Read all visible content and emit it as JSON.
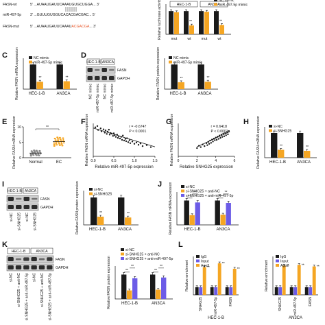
{
  "panel_labels": [
    "C",
    "D",
    "E",
    "F",
    "G",
    "H",
    "I",
    "J",
    "K",
    "L"
  ],
  "colors": {
    "black": "#1a1a1a",
    "orange": "#f5a623",
    "purple": "#6c5ce7",
    "red": "#e8572a",
    "gray": "#8a8a8a"
  },
  "A": {
    "fasn_wt": "FASN-wt",
    "fasn_wt_seq": "5' ...AUAAUGAUUCAAAUGUGCUGGA... 3'",
    "mir": "miR-497-5p",
    "mir_seq": "3' ...GUUUGUGGUCACACGACGAC... 5'",
    "fasn_mut": "FASN-mut",
    "fasn_mut_seq_a": "5' ...AUAAUGAUUCAAAU",
    "fasn_mut_seq_b": "ACGACGA",
    "fasn_mut_seq_c": "... 3'"
  },
  "chart_data": [
    {
      "id": "A_bar",
      "type": "bar",
      "ylabel": "Relative luciferase activity",
      "groups": [
        "HEC-1-B",
        "AN3CA"
      ],
      "categories": [
        "mut",
        "wt",
        "mut",
        "wt"
      ],
      "series": [
        {
          "name": "NC mimic",
          "values": [
            1.0,
            1.0,
            1.0,
            1.0
          ]
        },
        {
          "name": "miR-497-5p mimic",
          "values": [
            0.95,
            0.38,
            0.97,
            0.4
          ]
        }
      ],
      "stars": [
        "",
        "**",
        "",
        "**"
      ]
    },
    {
      "id": "C",
      "type": "bar",
      "ylabel": "Relative FASN mRNA expression",
      "categories": [
        "HEC-1-B",
        "AN3CA"
      ],
      "series": [
        {
          "name": "NC mimic",
          "values": [
            1.0,
            1.0
          ]
        },
        {
          "name": "miR-497-5p mimic",
          "values": [
            0.3,
            0.32
          ]
        }
      ],
      "stars": [
        "**",
        "**"
      ]
    },
    {
      "id": "D",
      "type": "bar",
      "ylabel": "Relative FASN protein expression",
      "blot_header": [
        "HEC-1-B",
        "AN3CA"
      ],
      "blot_rows": [
        "FASN",
        "GAPDH"
      ],
      "blot_lanes": [
        "NC mimic",
        "miR-497-5p mimic",
        "NC mimic",
        "miR-497-5p mimic"
      ],
      "categories": [
        "HEC-1-B",
        "AN3CA"
      ],
      "series": [
        {
          "name": "NC mimic",
          "values": [
            1.0,
            1.0
          ]
        },
        {
          "name": "miR-497-5p mimic",
          "values": [
            0.28,
            0.3
          ]
        }
      ],
      "stars": [
        "**",
        "**"
      ]
    },
    {
      "id": "E",
      "type": "scatter",
      "ylabel": "Relative FASN mRNA expression",
      "categories": [
        "Normal",
        "EC"
      ],
      "yticks": [
        "0",
        "5",
        "10"
      ],
      "ylim": [
        0,
        10
      ],
      "means": [
        1.5,
        5.2
      ],
      "star": "**"
    },
    {
      "id": "F",
      "type": "scatter",
      "xlabel": "Relative miR-497-5p expression",
      "ylabel": "Relative FASN mRNA expression",
      "r_text": "r = -0.6747",
      "p_text": "P < 0.0001",
      "xticks": [
        "0.0",
        "0.5",
        "1.0",
        "1.5"
      ],
      "xlim": [
        0,
        1.5
      ],
      "points": [
        [
          0.05,
          8.8
        ],
        [
          0.1,
          9.2
        ],
        [
          0.12,
          8.0
        ],
        [
          0.18,
          8.5
        ],
        [
          0.2,
          7.6
        ],
        [
          0.25,
          8.2
        ],
        [
          0.28,
          7.2
        ],
        [
          0.3,
          7.9
        ],
        [
          0.33,
          6.8
        ],
        [
          0.35,
          7.5
        ],
        [
          0.38,
          8.1
        ],
        [
          0.4,
          6.6
        ],
        [
          0.42,
          7.1
        ],
        [
          0.45,
          6.9
        ],
        [
          0.48,
          6.2
        ],
        [
          0.5,
          7.0
        ],
        [
          0.52,
          6.4
        ],
        [
          0.55,
          5.9
        ],
        [
          0.58,
          6.6
        ],
        [
          0.6,
          5.6
        ],
        [
          0.62,
          6.1
        ],
        [
          0.65,
          5.4
        ],
        [
          0.68,
          5.9
        ],
        [
          0.7,
          5.0
        ],
        [
          0.72,
          6.3
        ],
        [
          0.75,
          4.8
        ],
        [
          0.78,
          5.3
        ],
        [
          0.8,
          4.6
        ],
        [
          0.82,
          5.5
        ],
        [
          0.85,
          4.3
        ],
        [
          0.88,
          4.9
        ],
        [
          0.9,
          4.0
        ],
        [
          0.95,
          4.5
        ],
        [
          1.0,
          3.8
        ],
        [
          1.05,
          4.2
        ],
        [
          1.1,
          3.5
        ],
        [
          1.15,
          3.9
        ],
        [
          1.2,
          3.1
        ],
        [
          1.3,
          3.4
        ],
        [
          1.4,
          2.8
        ]
      ],
      "fit": [
        [
          0.0,
          8.6
        ],
        [
          1.5,
          2.9
        ]
      ]
    },
    {
      "id": "G",
      "type": "scatter",
      "xlabel": "Relative SNHG25 expression",
      "ylabel": "Relative FASN mRNA expression",
      "r_text": "r = 0.6418",
      "p_text": "P < 0.0001",
      "xticks": [
        "0",
        "2",
        "4",
        "6"
      ],
      "xlim": [
        0,
        6
      ],
      "points": [
        [
          2.0,
          2.5
        ],
        [
          2.2,
          3.2
        ],
        [
          2.4,
          2.8
        ],
        [
          2.6,
          3.6
        ],
        [
          2.8,
          3.1
        ],
        [
          3.0,
          4.0
        ],
        [
          3.1,
          3.4
        ],
        [
          3.2,
          4.4
        ],
        [
          3.3,
          3.8
        ],
        [
          3.4,
          4.8
        ],
        [
          3.5,
          4.1
        ],
        [
          3.6,
          5.1
        ],
        [
          3.7,
          4.5
        ],
        [
          3.8,
          5.4
        ],
        [
          3.9,
          4.9
        ],
        [
          4.0,
          5.7
        ],
        [
          4.1,
          5.0
        ],
        [
          4.2,
          6.0
        ],
        [
          4.3,
          5.3
        ],
        [
          4.4,
          6.3
        ],
        [
          4.5,
          5.6
        ],
        [
          4.6,
          6.6
        ],
        [
          4.7,
          5.9
        ],
        [
          4.8,
          6.9
        ],
        [
          4.9,
          6.1
        ],
        [
          5.0,
          7.1
        ],
        [
          5.1,
          6.4
        ],
        [
          5.2,
          7.4
        ],
        [
          5.3,
          6.7
        ],
        [
          5.4,
          7.7
        ]
      ],
      "fit": [
        [
          2.0,
          2.9
        ],
        [
          5.5,
          7.5
        ]
      ]
    },
    {
      "id": "H",
      "type": "bar",
      "ylabel": "Relative FASN mRNA expression",
      "categories": [
        "HEC-1-B",
        "AN3CA"
      ],
      "series": [
        {
          "name": "si-NC",
          "values": [
            1.0,
            1.0
          ]
        },
        {
          "name": "si-SNHG25",
          "values": [
            0.32,
            0.28
          ]
        }
      ],
      "stars": [
        "**",
        "**"
      ]
    },
    {
      "id": "I",
      "type": "bar",
      "ylabel": "Relative FASN protein expression",
      "blot_header": [
        "HEC-1-B",
        "AN3CA"
      ],
      "blot_rows": [
        "FASN",
        "GAPDH"
      ],
      "blot_lanes": [
        "si-NC",
        "si-SNHG25",
        "si-NC",
        "si-SNHG25"
      ],
      "categories": [
        "HEC-1-B",
        "AN3CA"
      ],
      "series": [
        {
          "name": "si-NC",
          "values": [
            1.0,
            1.0
          ]
        },
        {
          "name": "si-SNHG25",
          "values": [
            0.3,
            0.27
          ]
        }
      ],
      "stars": [
        "**",
        "**"
      ]
    },
    {
      "id": "J",
      "type": "bar",
      "ylabel": "Relative FASN mRNA expression",
      "categories": [
        "HEC-1-B",
        "AN3CA"
      ],
      "series": [
        {
          "name": "si-NC",
          "values": [
            1.0,
            1.0
          ]
        },
        {
          "name": "si-SNHG25 + anti-NC",
          "values": [
            0.4,
            0.42
          ]
        },
        {
          "name": "si-SNHG25 + anti-miR-497-5p",
          "values": [
            0.92,
            0.9
          ]
        }
      ],
      "stars": [
        "**",
        "**"
      ]
    },
    {
      "id": "K",
      "type": "bar",
      "ylabel": "Relative FASN protein expression",
      "blot_header": [
        "HEC-1-B",
        "AN3CA"
      ],
      "blot_rows": [
        "FASN",
        "GAPDH"
      ],
      "blot_lanes": [
        "si-NC",
        "si-SNHG25 + anti-NC",
        "si-SNHG25 + anti-miR-497-5p",
        "si-NC",
        "si-SNHG25 + anti-NC",
        "si-SNHG25 + anti-miR-497-5p"
      ],
      "categories": [
        "HEC-1-B",
        "AN3CA"
      ],
      "series": [
        {
          "name": "si-NC",
          "values": [
            1.0,
            1.0
          ]
        },
        {
          "name": "si-SNHG25 + anti-NC",
          "values": [
            0.35,
            0.38
          ]
        },
        {
          "name": "si-SNHG25 + anti-miR-497-5p",
          "values": [
            0.85,
            0.88
          ]
        }
      ],
      "stars": [
        "**",
        "**"
      ]
    },
    {
      "id": "L1",
      "type": "bar",
      "ylabel": "Relative enrichment",
      "group_label": "HEC-1-B",
      "categories": [
        "SNHG25",
        "miR-497-5p",
        "FASN"
      ],
      "series": [
        {
          "name": "IgG",
          "values": [
            1.0,
            1.0,
            1.0
          ]
        },
        {
          "name": "Input",
          "values": [
            1.0,
            1.0,
            1.0
          ]
        },
        {
          "name": "Ago2",
          "values": [
            3.6,
            4.1,
            3.4
          ]
        }
      ],
      "stars": [
        "**",
        "**",
        "**"
      ]
    },
    {
      "id": "L2",
      "type": "bar",
      "ylabel": "Relative enrichment",
      "group_label": "AN3CA",
      "categories": [
        "SNHG25",
        "miR-497-5p",
        "FASN"
      ],
      "series": [
        {
          "name": "IgG",
          "values": [
            1.0,
            1.0,
            1.0
          ]
        },
        {
          "name": "Input",
          "values": [
            1.0,
            1.0,
            1.0
          ]
        },
        {
          "name": "Ago2",
          "values": [
            3.8,
            3.9,
            3.7
          ]
        }
      ],
      "stars": [
        "**",
        "**",
        "**"
      ]
    }
  ]
}
